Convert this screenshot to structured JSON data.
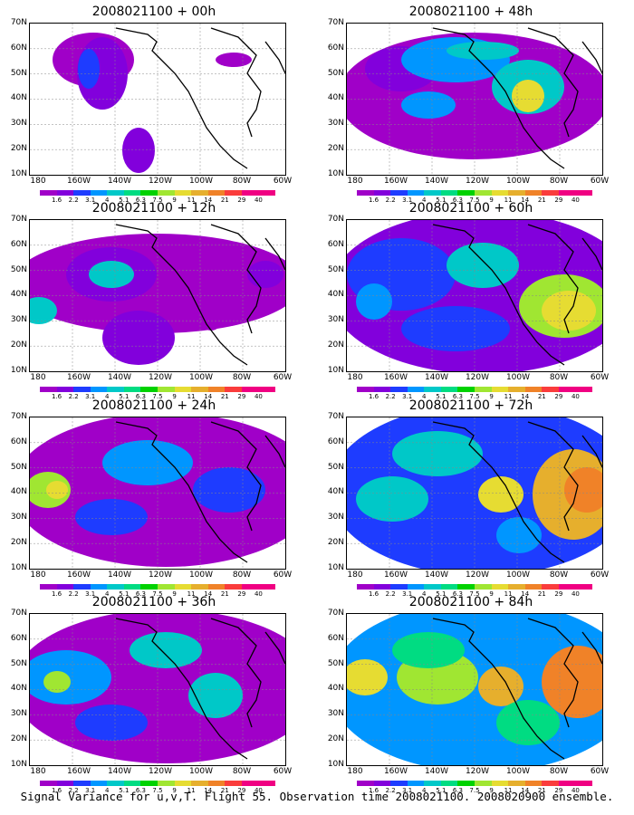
{
  "colors": {
    "levels": [
      "#a000c8",
      "#8200dc",
      "#1e3cff",
      "#0096ff",
      "#00c8c8",
      "#00dc82",
      "#00d200",
      "#a0e632",
      "#e6dc32",
      "#e6af2d",
      "#f08228",
      "#fa3c3c",
      "#f00082"
    ],
    "coast": "#000000",
    "grid": "#888888"
  },
  "colorbar": {
    "labels": [
      "1.6",
      "2.2",
      "3.1",
      "4",
      "5.1",
      "6.3",
      "7.5",
      "9",
      "11",
      "14",
      "21",
      "29",
      "40"
    ]
  },
  "axes": {
    "y_labels": [
      "70N",
      "60N",
      "50N",
      "40N",
      "30N",
      "20N",
      "10N"
    ],
    "x_labels": [
      "180",
      "160W",
      "140W",
      "120W",
      "100W",
      "80W",
      "60W"
    ]
  },
  "panels": [
    {
      "title": "2008021100 + 00h"
    },
    {
      "title": "2008021100 + 48h"
    },
    {
      "title": "2008021100 + 12h"
    },
    {
      "title": "2008021100 + 60h"
    },
    {
      "title": "2008021100 + 24h"
    },
    {
      "title": "2008021100 + 72h"
    },
    {
      "title": "2008021100 + 36h"
    },
    {
      "title": "2008021100 + 84h"
    }
  ],
  "caption": "Signal Variance for u,v,T. Flight 55. Observation time 2008021100. 2008020900 ensemble."
}
